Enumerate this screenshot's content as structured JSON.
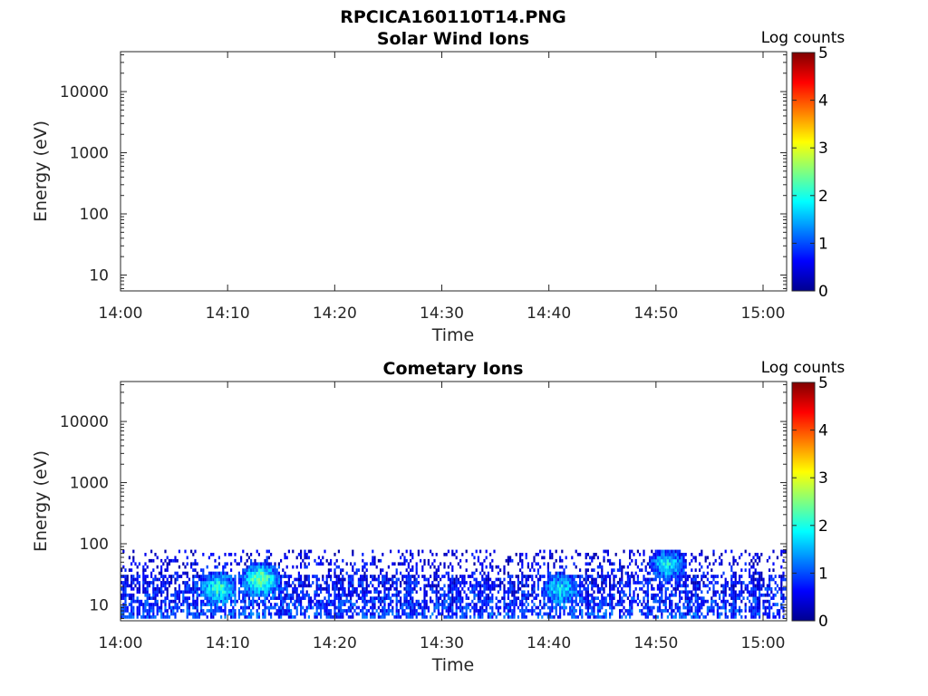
{
  "figure_title": "RPCICA160110T14.PNG",
  "chart_data": [
    {
      "type": "heatmap",
      "title": "Solar Wind Ions",
      "xlabel": "Time",
      "ylabel": "Energy (eV)",
      "y_scale": "log",
      "ylim": [
        5.5,
        45000
      ],
      "x_ticks": [
        "14:00",
        "14:10",
        "14:20",
        "14:30",
        "14:40",
        "14:50",
        "15:00"
      ],
      "y_ticks": [
        10,
        100,
        1000,
        10000
      ],
      "y_tick_labels": [
        "10",
        "100",
        "1000",
        "10000"
      ],
      "colorbar": {
        "label": "Log counts",
        "range": [
          0,
          5
        ],
        "ticks": [
          "0",
          "1",
          "2",
          "3",
          "4",
          "5"
        ],
        "colormap": "jet"
      },
      "values": []
    },
    {
      "type": "heatmap",
      "title": "Cometary Ions",
      "xlabel": "Time",
      "ylabel": "Energy (eV)",
      "y_scale": "log",
      "ylim": [
        5.5,
        45000
      ],
      "x_ticks": [
        "14:00",
        "14:10",
        "14:20",
        "14:30",
        "14:40",
        "14:50",
        "15:00"
      ],
      "y_ticks": [
        10,
        100,
        1000,
        10000
      ],
      "y_tick_labels": [
        "10",
        "100",
        "1000",
        "10000"
      ],
      "colorbar": {
        "label": "Log counts",
        "range": [
          0,
          5
        ],
        "ticks": [
          "0",
          "1",
          "2",
          "3",
          "4",
          "5"
        ],
        "colormap": "jet"
      },
      "activity": {
        "energy_range_eV": [
          6,
          80
        ],
        "peak_log_counts": 2.5,
        "bright_patches": [
          {
            "time": "14:09",
            "energy_eV": 18,
            "log_counts": 2.0
          },
          {
            "time": "14:13",
            "energy_eV": 25,
            "log_counts": 2.5
          },
          {
            "time": "14:41",
            "energy_eV": 18,
            "log_counts": 1.7
          },
          {
            "time": "14:51",
            "energy_eV": 45,
            "log_counts": 2.0
          }
        ]
      }
    }
  ]
}
